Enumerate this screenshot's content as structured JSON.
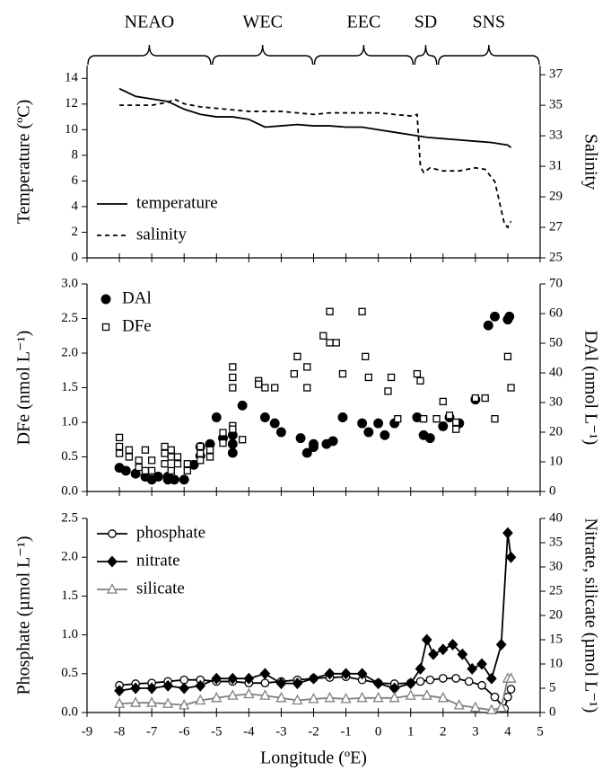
{
  "chart_data": [
    {
      "type": "line",
      "regions": [
        {
          "label": "NEAO",
          "from": -9,
          "to": -5.15
        },
        {
          "label": "WEC",
          "from": -5.15,
          "to": -2.0
        },
        {
          "label": "EEC",
          "from": -2.0,
          "to": 1.1
        },
        {
          "label": "SD",
          "from": 1.1,
          "to": 1.83
        },
        {
          "label": "SNS",
          "from": 1.83,
          "to": 5
        }
      ],
      "ylabel": "Temperature (ºC)",
      "y2label": "Salinity",
      "xlim": [
        -9,
        5
      ],
      "xticks": [
        -9,
        -8,
        -7,
        -6,
        -5,
        -4,
        -3,
        -2,
        -1,
        0,
        1,
        2,
        3,
        4,
        5
      ],
      "ylim": [
        0,
        15
      ],
      "yticks": [
        0,
        2,
        4,
        6,
        8,
        10,
        12,
        14
      ],
      "y2lim": [
        25,
        37.6
      ],
      "y2ticks": [
        25,
        27,
        29,
        31,
        33,
        35,
        37
      ],
      "legend": "lower left",
      "series": [
        {
          "name": "temperature",
          "color": "#000000",
          "dash": false,
          "marker": "none",
          "x": [
            -8,
            -7.5,
            -7,
            -6.5,
            -6,
            -5.5,
            -5,
            -4.5,
            -4,
            -3.5,
            -3,
            -2.5,
            -2,
            -1.5,
            -1,
            -0.5,
            0,
            0.5,
            1,
            1.5,
            2,
            2.5,
            3,
            3.5,
            4,
            4.1
          ],
          "values": [
            13.2,
            12.6,
            12.4,
            12.2,
            11.6,
            11.2,
            11.0,
            11.0,
            10.8,
            10.2,
            10.3,
            10.4,
            10.3,
            10.3,
            10.2,
            10.2,
            10.0,
            9.8,
            9.6,
            9.4,
            9.3,
            9.2,
            9.1,
            9.0,
            8.8,
            8.6
          ]
        },
        {
          "name": "salinity",
          "color": "#000000",
          "dash": true,
          "marker": "none",
          "axis": "y2",
          "x": [
            -8,
            -7.5,
            -7,
            -6.5,
            -6.3,
            -6,
            -5.5,
            -5,
            -4.5,
            -4,
            -3.5,
            -3,
            -2.5,
            -2,
            -1.5,
            -1,
            -0.5,
            0,
            0.5,
            1,
            1.2,
            1.3,
            1.4,
            1.6,
            2,
            2.5,
            3,
            3.3,
            3.6,
            3.9,
            4.0,
            4.1
          ],
          "values": [
            35.0,
            35.0,
            35.0,
            35.2,
            35.4,
            35.1,
            34.9,
            34.8,
            34.7,
            34.6,
            34.6,
            34.6,
            34.5,
            34.4,
            34.5,
            34.5,
            34.5,
            34.5,
            34.4,
            34.3,
            34.4,
            31.0,
            30.6,
            30.9,
            30.7,
            30.7,
            30.9,
            30.8,
            30.0,
            27.2,
            27.0,
            27.4
          ]
        }
      ]
    },
    {
      "type": "scatter",
      "ylabel": "DFe (nmol L⁻¹)",
      "y2label": "DAl (nmol L⁻¹)",
      "xlim": [
        -9,
        5
      ],
      "xticks": [
        -9,
        -8,
        -7,
        -6,
        -5,
        -4,
        -3,
        -2,
        -1,
        0,
        1,
        2,
        3,
        4,
        5
      ],
      "ylim": [
        0,
        3
      ],
      "yticks": [
        {
          "value": 0,
          "label": "0.0"
        },
        {
          "value": 0.5,
          "label": "0.5"
        },
        {
          "value": 1,
          "label": "1.0"
        },
        {
          "value": 1.5,
          "label": "1.5"
        },
        {
          "value": 2,
          "label": "2.0"
        },
        {
          "value": 2.5,
          "label": "2.5"
        },
        {
          "value": 3,
          "label": "3.0"
        }
      ],
      "y2lim": [
        0,
        70
      ],
      "y2ticks": [
        0,
        10,
        20,
        30,
        40,
        50,
        60,
        70
      ],
      "legend": "upper left",
      "series": [
        {
          "name": "DAl",
          "color": "#000000",
          "marker": "circle-filled",
          "axis": "y2",
          "x": [
            -8,
            -7.8,
            -7.5,
            -7.2,
            -7,
            -6.8,
            -6.5,
            -6.5,
            -6.3,
            -6,
            -5.7,
            -5.5,
            -5.5,
            -5.2,
            -5,
            -4.8,
            -4.5,
            -4.5,
            -4.5,
            -4.2,
            -3.5,
            -3.2,
            -3,
            -2.4,
            -2.2,
            -2,
            -2,
            -1.6,
            -1.4,
            -1.1,
            -0.5,
            -0.3,
            0,
            0.2,
            0.5,
            1.2,
            1.4,
            1.6,
            2.0,
            2.2,
            2.5,
            3.0,
            3.4,
            3.6,
            4.0,
            4.05
          ],
          "values": [
            8,
            7,
            6,
            5,
            4,
            5,
            5,
            4,
            4,
            4,
            9,
            12,
            15,
            16,
            25,
            18,
            13,
            16,
            19,
            29,
            25,
            23,
            20,
            18,
            13,
            15,
            16,
            16,
            17,
            25,
            23,
            20,
            23,
            19,
            23,
            25,
            19,
            18,
            22,
            25,
            23,
            31,
            56,
            59,
            58,
            59
          ]
        },
        {
          "name": "DFe",
          "color": "#000000",
          "marker": "square-open",
          "x": [
            -8,
            -8,
            -8,
            -7.7,
            -7.7,
            -7.4,
            -7.4,
            -7.2,
            -7.2,
            -7,
            -7,
            -6.6,
            -6.6,
            -6.6,
            -6.4,
            -6.4,
            -6.4,
            -6.2,
            -6.2,
            -5.9,
            -5.9,
            -5.5,
            -5.5,
            -5.5,
            -5.2,
            -5.2,
            -4.8,
            -4.8,
            -4.5,
            -4.5,
            -4.5,
            -4.5,
            -4.5,
            -4.2,
            -3.7,
            -3.7,
            -3.5,
            -3.2,
            -2.6,
            -2.5,
            -2.2,
            -2.2,
            -1.7,
            -1.5,
            -1.5,
            -1.3,
            -1.1,
            -0.5,
            -0.4,
            -0.3,
            0.3,
            0.4,
            0.6,
            1.2,
            1.3,
            1.4,
            1.8,
            2.0,
            2.2,
            2.4,
            2.4,
            3.0,
            3.3,
            3.6,
            4.0,
            4.1
          ],
          "values": [
            0.78,
            0.65,
            0.55,
            0.6,
            0.5,
            0.45,
            0.35,
            0.6,
            0.3,
            0.45,
            0.3,
            0.65,
            0.55,
            0.4,
            0.6,
            0.5,
            0.3,
            0.5,
            0.4,
            0.4,
            0.3,
            0.65,
            0.55,
            0.45,
            0.6,
            0.5,
            0.85,
            0.7,
            1.5,
            1.65,
            1.8,
            0.95,
            0.9,
            0.75,
            1.6,
            1.55,
            1.5,
            1.5,
            1.7,
            1.95,
            1.8,
            1.5,
            2.25,
            2.15,
            2.6,
            2.15,
            1.7,
            2.6,
            1.95,
            1.65,
            1.45,
            1.65,
            1.05,
            1.7,
            1.6,
            1.05,
            1.05,
            1.3,
            1.1,
            0.9,
            1.0,
            1.35,
            1.35,
            1.05,
            1.95,
            1.5
          ]
        }
      ]
    },
    {
      "type": "line",
      "xlabel": "Longitude (ºE)",
      "ylabel": "Phosphate (µmol L⁻¹)",
      "y2label": "Nitrate, silicate (µmol L⁻¹)",
      "xlim": [
        -9,
        5
      ],
      "xticks": [
        -9,
        -8,
        -7,
        -6,
        -5,
        -4,
        -3,
        -2,
        -1,
        0,
        1,
        2,
        3,
        4,
        5
      ],
      "ylim": [
        0,
        2.5
      ],
      "yticks": [
        {
          "value": 0,
          "label": "0.0"
        },
        {
          "value": 0.5,
          "label": "0.5"
        },
        {
          "value": 1,
          "label": "1.0"
        },
        {
          "value": 1.5,
          "label": "1.5"
        },
        {
          "value": 2,
          "label": "2.0"
        },
        {
          "value": 2.5,
          "label": "2.5"
        }
      ],
      "y2lim": [
        0,
        40
      ],
      "y2ticks": [
        0,
        5,
        10,
        15,
        20,
        25,
        30,
        35,
        40
      ],
      "legend": "upper left",
      "series": [
        {
          "name": "phosphate",
          "color": "#000000",
          "marker": "circle-open",
          "x": [
            -8,
            -7.5,
            -7,
            -6.5,
            -6,
            -5.5,
            -5,
            -4.5,
            -4,
            -3.5,
            -3,
            -2.5,
            -2,
            -1.5,
            -1,
            -0.5,
            0,
            0.5,
            1,
            1.3,
            1.6,
            2,
            2.4,
            2.8,
            3.2,
            3.6,
            3.9,
            4.0,
            4.1
          ],
          "values": [
            0.35,
            0.37,
            0.38,
            0.4,
            0.42,
            0.42,
            0.4,
            0.4,
            0.38,
            0.38,
            0.4,
            0.42,
            0.44,
            0.45,
            0.46,
            0.42,
            0.38,
            0.37,
            0.38,
            0.4,
            0.42,
            0.44,
            0.44,
            0.4,
            0.35,
            0.2,
            0.05,
            0.2,
            0.3
          ]
        },
        {
          "name": "nitrate",
          "color": "#000000",
          "marker": "diamond",
          "axis": "y2",
          "x": [
            -8,
            -7.5,
            -7,
            -6.5,
            -6,
            -5.5,
            -5,
            -4.5,
            -4,
            -3.5,
            -3,
            -2.5,
            -2,
            -1.5,
            -1,
            -0.5,
            0,
            0.5,
            1,
            1.3,
            1.5,
            1.7,
            2,
            2.3,
            2.6,
            2.9,
            3.2,
            3.5,
            3.8,
            4.0,
            4.1
          ],
          "values": [
            4.5,
            5,
            5,
            5.5,
            5,
            5.5,
            7,
            7,
            7,
            8,
            6,
            6,
            7,
            8,
            8,
            8,
            6,
            5,
            6,
            9,
            15,
            12,
            13,
            14,
            12,
            9,
            10,
            7,
            14,
            37,
            32
          ]
        },
        {
          "name": "silicate",
          "color": "#808080",
          "marker": "triangle",
          "axis": "y2",
          "x": [
            -8,
            -7.5,
            -7,
            -6.5,
            -6,
            -5.5,
            -5,
            -4.5,
            -4,
            -3.5,
            -3,
            -2.5,
            -2,
            -1.5,
            -1,
            -0.5,
            0,
            0.5,
            1,
            1.5,
            2,
            2.5,
            3,
            3.5,
            3.8,
            4.0,
            4.1
          ],
          "values": [
            1.8,
            2,
            2,
            1.8,
            1.5,
            2.5,
            3,
            3.5,
            3.8,
            3.5,
            3.0,
            2.5,
            2.8,
            3,
            2.8,
            3,
            3,
            3,
            3.5,
            3.5,
            3,
            1.5,
            1,
            0.5,
            1,
            7,
            7
          ]
        }
      ]
    }
  ]
}
